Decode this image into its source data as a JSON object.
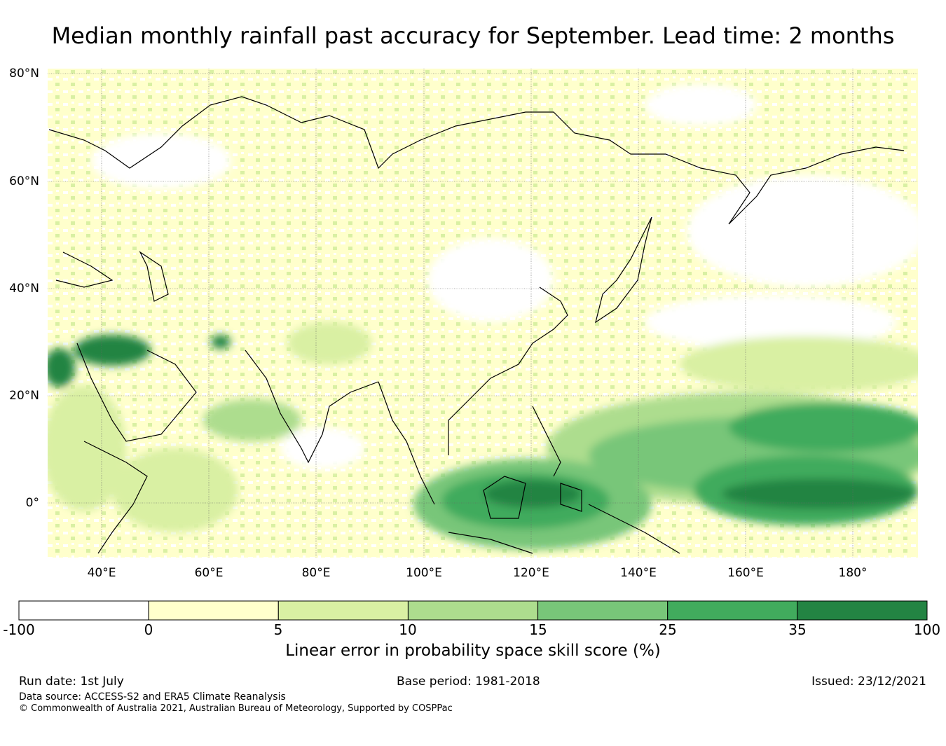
{
  "title": "Median monthly rainfall past accuracy for September. Lead time: 2 months",
  "map": {
    "lat_labels": [
      "80°N",
      "60°N",
      "40°N",
      "20°N",
      "0°"
    ],
    "lon_labels": [
      "40°E",
      "60°E",
      "80°E",
      "100°E",
      "120°E",
      "140°E",
      "160°E",
      "180°"
    ],
    "extent": {
      "lon_min": 30,
      "lon_max": 192,
      "lat_min": -10,
      "lat_max": 81
    }
  },
  "colorbar": {
    "ticks": [
      "-100",
      "0",
      "5",
      "10",
      "15",
      "25",
      "35",
      "100"
    ],
    "colors": [
      "#ffffff",
      "#ffffcc",
      "#d9f0a3",
      "#addd8e",
      "#78c679",
      "#41ab5d",
      "#238443"
    ],
    "label": "Linear error in probability space skill score (%)"
  },
  "footer": {
    "run_date": "Run date: 1st July",
    "base_period": "Base period: 1981-2018",
    "issued": "Issued: 23/12/2021",
    "data_source": "Data source: ACCESS-S2 and ERA5 Climate Reanalysis",
    "copyright": "© Commonwealth of Australia 2021, Australian Bureau of Meteorology, Supported by COSPPac"
  }
}
